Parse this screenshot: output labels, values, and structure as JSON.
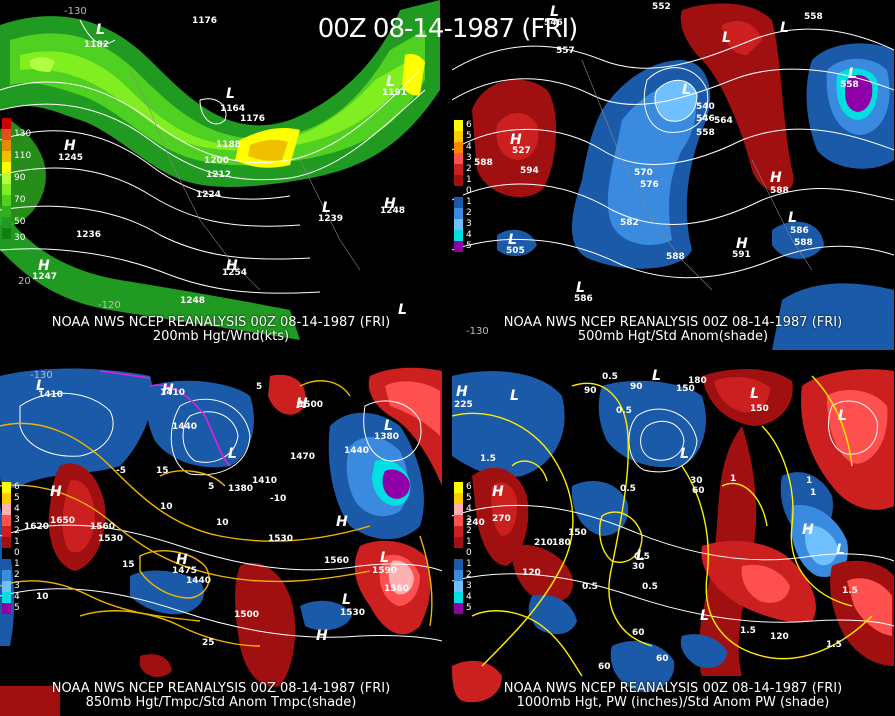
{
  "title": "00Z 08-14-1987 (FRI)",
  "panels": [
    {
      "line1": "NOAA NWS NCEP REANALYSIS 00Z 08-14-1987 (FRI)",
      "line2": "200mb Hgt/Wnd(kts)",
      "legend": [
        {
          "label": "130",
          "color": "#cc0000"
        },
        {
          "label": "",
          "color": "#e05020"
        },
        {
          "label": "110",
          "color": "#e08a00"
        },
        {
          "label": "",
          "color": "#f0c000"
        },
        {
          "label": "90",
          "color": "#ffff00"
        },
        {
          "label": "",
          "color": "#b0ff40"
        },
        {
          "label": "70",
          "color": "#80ee20"
        },
        {
          "label": "",
          "color": "#50d020"
        },
        {
          "label": "50",
          "color": "#30b020"
        },
        {
          "label": "",
          "color": "#209a20"
        },
        {
          "label": "30",
          "color": "#108010"
        }
      ],
      "lon_labels": [
        "-130",
        "-120",
        "20"
      ],
      "contour_labels": [
        "1176",
        "1182",
        "1164",
        "1176",
        "1188",
        "1200",
        "1212",
        "1224",
        "1236",
        "1245",
        "1248",
        "1254",
        "1239",
        "1191",
        "1247",
        "1248"
      ],
      "hl": [
        "L",
        "L",
        "H",
        "H",
        "H",
        "L",
        "L",
        "H",
        "L"
      ]
    },
    {
      "line1": "NOAA NWS NCEP REANALYSIS 00Z 08-14-1987 (FRI)",
      "line2": "500mb Hgt/Std Anom(shade)",
      "legend": [
        {
          "label": "6",
          "color": "#ffff00"
        },
        {
          "label": "5",
          "color": "#ffcc00"
        },
        {
          "label": "4",
          "color": "#ff8800"
        },
        {
          "label": "3",
          "color": "#ff5050"
        },
        {
          "label": "2",
          "color": "#cc2020"
        },
        {
          "label": "1",
          "color": "#a01010"
        },
        {
          "label": "0",
          "color": "#000000"
        },
        {
          "label": "1",
          "color": "#1a5aa8"
        },
        {
          "label": "2",
          "color": "#3a8ae0"
        },
        {
          "label": "3",
          "color": "#70c0ff"
        },
        {
          "label": "4",
          "color": "#00e0e0"
        },
        {
          "label": "5",
          "color": "#9000a8"
        }
      ],
      "lon_labels": [
        "-130"
      ],
      "contour_labels": [
        "552",
        "558",
        "557",
        "588",
        "594",
        "540",
        "546",
        "558",
        "564",
        "570",
        "576",
        "582",
        "588",
        "586",
        "588",
        "558",
        "527",
        "546",
        "505",
        "591",
        "588",
        "586"
      ],
      "hl": [
        "L",
        "L",
        "H",
        "L",
        "L",
        "H",
        "L",
        "L",
        "H",
        "L",
        "L"
      ]
    },
    {
      "line1": "NOAA NWS NCEP REANALYSIS 00Z 08-14-1987 (FRI)",
      "line2": "850mb Hgt/Tmpc/Std Anom Tmpc(shade)",
      "legend": [
        {
          "label": "6",
          "color": "#ffff00"
        },
        {
          "label": "5",
          "color": "#ffcc00"
        },
        {
          "label": "4",
          "color": "#ffb0b0"
        },
        {
          "label": "3",
          "color": "#ff5050"
        },
        {
          "label": "2",
          "color": "#cc2020"
        },
        {
          "label": "1",
          "color": "#a01010"
        },
        {
          "label": "0",
          "color": "#000000"
        },
        {
          "label": "1",
          "color": "#1a5aa8"
        },
        {
          "label": "2",
          "color": "#3a8ae0"
        },
        {
          "label": "3",
          "color": "#70c0ff"
        },
        {
          "label": "4",
          "color": "#00e0e0"
        },
        {
          "label": "5",
          "color": "#9000a8"
        }
      ],
      "lon_labels": [
        "-130"
      ],
      "contour_labels": [
        "1410",
        "1410",
        "1440",
        "1500",
        "1470",
        "1380",
        "1410",
        "1620",
        "1650",
        "1560",
        "1530",
        "1440",
        "1500",
        "1530",
        "1560",
        "1530",
        "1560",
        "1590",
        "1380",
        "1440",
        "10",
        "15",
        "25",
        "5",
        "10",
        "5",
        "10",
        "15",
        "-10",
        "-5",
        "1475"
      ],
      "hl": [
        "H",
        "H",
        "L",
        "L",
        "H",
        "L",
        "H",
        "L",
        "H",
        "L",
        "H"
      ]
    },
    {
      "line1": "NOAA NWS NCEP REANALYSIS 00Z 08-14-1987 (FRI)",
      "line2": "1000mb Hgt, PW (inches)/Std Anom PW (shade)",
      "legend": [
        {
          "label": "6",
          "color": "#ffff00"
        },
        {
          "label": "5",
          "color": "#ffcc00"
        },
        {
          "label": "4",
          "color": "#ffb0b0"
        },
        {
          "label": "3",
          "color": "#ff5050"
        },
        {
          "label": "2",
          "color": "#cc2020"
        },
        {
          "label": "1",
          "color": "#a01010"
        },
        {
          "label": "0",
          "color": "#000000"
        },
        {
          "label": "1",
          "color": "#1a5aa8"
        },
        {
          "label": "2",
          "color": "#3a8ae0"
        },
        {
          "label": "3",
          "color": "#70c0ff"
        },
        {
          "label": "4",
          "color": "#00e0e0"
        },
        {
          "label": "5",
          "color": "#9000a8"
        }
      ],
      "lon_labels": [],
      "contour_labels": [
        "225",
        "240",
        "270",
        "210",
        "180",
        "150",
        "120",
        "90",
        "90",
        "150",
        "180",
        "150",
        "60",
        "30",
        "60",
        "60",
        "120",
        "30",
        "60",
        "1.5",
        "0.5",
        "0.5",
        "1",
        "0.5",
        "0.5",
        "1",
        "1.5",
        "1.5",
        "0.5",
        "1.5",
        "1",
        "0.5"
      ],
      "hl": [
        "H",
        "L",
        "H",
        "L",
        "L",
        "L",
        "L",
        "L",
        "H",
        "L",
        "L"
      ]
    }
  ]
}
